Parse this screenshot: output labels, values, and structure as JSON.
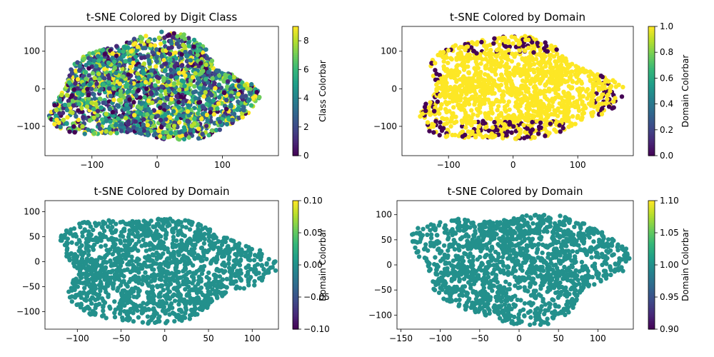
{
  "chart_data": [
    {
      "type": "scatter",
      "title": "t-SNE Colored by Digit Class",
      "xlabel": "",
      "ylabel": "",
      "xlim": [
        -172,
        186
      ],
      "ylim": [
        -178,
        166
      ],
      "xticks": [
        -100,
        0,
        100
      ],
      "xtick_labels": [
        "−100",
        "0",
        "100"
      ],
      "yticks": [
        -100,
        0,
        100
      ],
      "ytick_labels": [
        "−100",
        "0",
        "100"
      ],
      "colormap": "viridis",
      "colorbar": {
        "label": "Class Colorbar",
        "range": [
          0,
          9
        ],
        "ticks": [
          0,
          2,
          4,
          6,
          8
        ],
        "tick_labels": [
          "0",
          "2",
          "4",
          "6",
          "8"
        ]
      },
      "point_color_mode": "class"
    },
    {
      "type": "scatter",
      "title": "t-SNE Colored by Domain",
      "xlabel": "",
      "ylabel": "",
      "xlim": [
        -172,
        186
      ],
      "ylim": [
        -178,
        166
      ],
      "xticks": [
        -100,
        0,
        100
      ],
      "xtick_labels": [
        "−100",
        "0",
        "100"
      ],
      "yticks": [
        -100,
        0,
        100
      ],
      "ytick_labels": [
        "−100",
        "0",
        "100"
      ],
      "colormap": "viridis",
      "colorbar": {
        "label": "Domain Colorbar",
        "range": [
          0,
          1
        ],
        "ticks": [
          0,
          0.2,
          0.4,
          0.6,
          0.8,
          1.0
        ],
        "tick_labels": [
          "0.0",
          "0.2",
          "0.4",
          "0.6",
          "0.8",
          "1.0"
        ]
      },
      "point_color_mode": "domain",
      "domains": [
        0,
        1
      ]
    },
    {
      "type": "scatter",
      "title": "t-SNE Colored by Domain",
      "xlabel": "",
      "ylabel": "",
      "xlim": [
        -137,
        130
      ],
      "ylim": [
        -135,
        122
      ],
      "xticks": [
        -100,
        -50,
        0,
        50,
        100
      ],
      "xtick_labels": [
        "−100",
        "−50",
        "0",
        "50",
        "100"
      ],
      "yticks": [
        -100,
        -50,
        0,
        50,
        100
      ],
      "ytick_labels": [
        "−100",
        "−50",
        "0",
        "50",
        "100"
      ],
      "colormap": "viridis",
      "colorbar": {
        "label": "Domain Colorbar",
        "range": [
          -0.1,
          0.1
        ],
        "ticks": [
          -0.1,
          -0.05,
          0,
          0.05,
          0.1
        ],
        "tick_labels": [
          "−0.10",
          "−0.05",
          "0.00",
          "0.05",
          "0.10"
        ]
      },
      "point_color_mode": "single",
      "domain_value": 0
    },
    {
      "type": "scatter",
      "title": "t-SNE Colored by Domain",
      "xlabel": "",
      "ylabel": "",
      "xlim": [
        -155,
        145
      ],
      "ylim": [
        -128,
        128
      ],
      "xticks": [
        -150,
        -100,
        -50,
        0,
        50,
        100
      ],
      "xtick_labels": [
        "−150",
        "−100",
        "−50",
        "0",
        "50",
        "100"
      ],
      "yticks": [
        -100,
        -50,
        0,
        50,
        100
      ],
      "ytick_labels": [
        "−100",
        "−50",
        "0",
        "50",
        "100"
      ],
      "colormap": "viridis",
      "colorbar": {
        "label": "Domain Colorbar",
        "range": [
          0.9,
          1.1
        ],
        "ticks": [
          0.9,
          0.95,
          1.0,
          1.05,
          1.1
        ],
        "tick_labels": [
          "0.90",
          "0.95",
          "1.00",
          "1.05",
          "1.10"
        ]
      },
      "point_color_mode": "single",
      "domain_value": 1
    }
  ]
}
